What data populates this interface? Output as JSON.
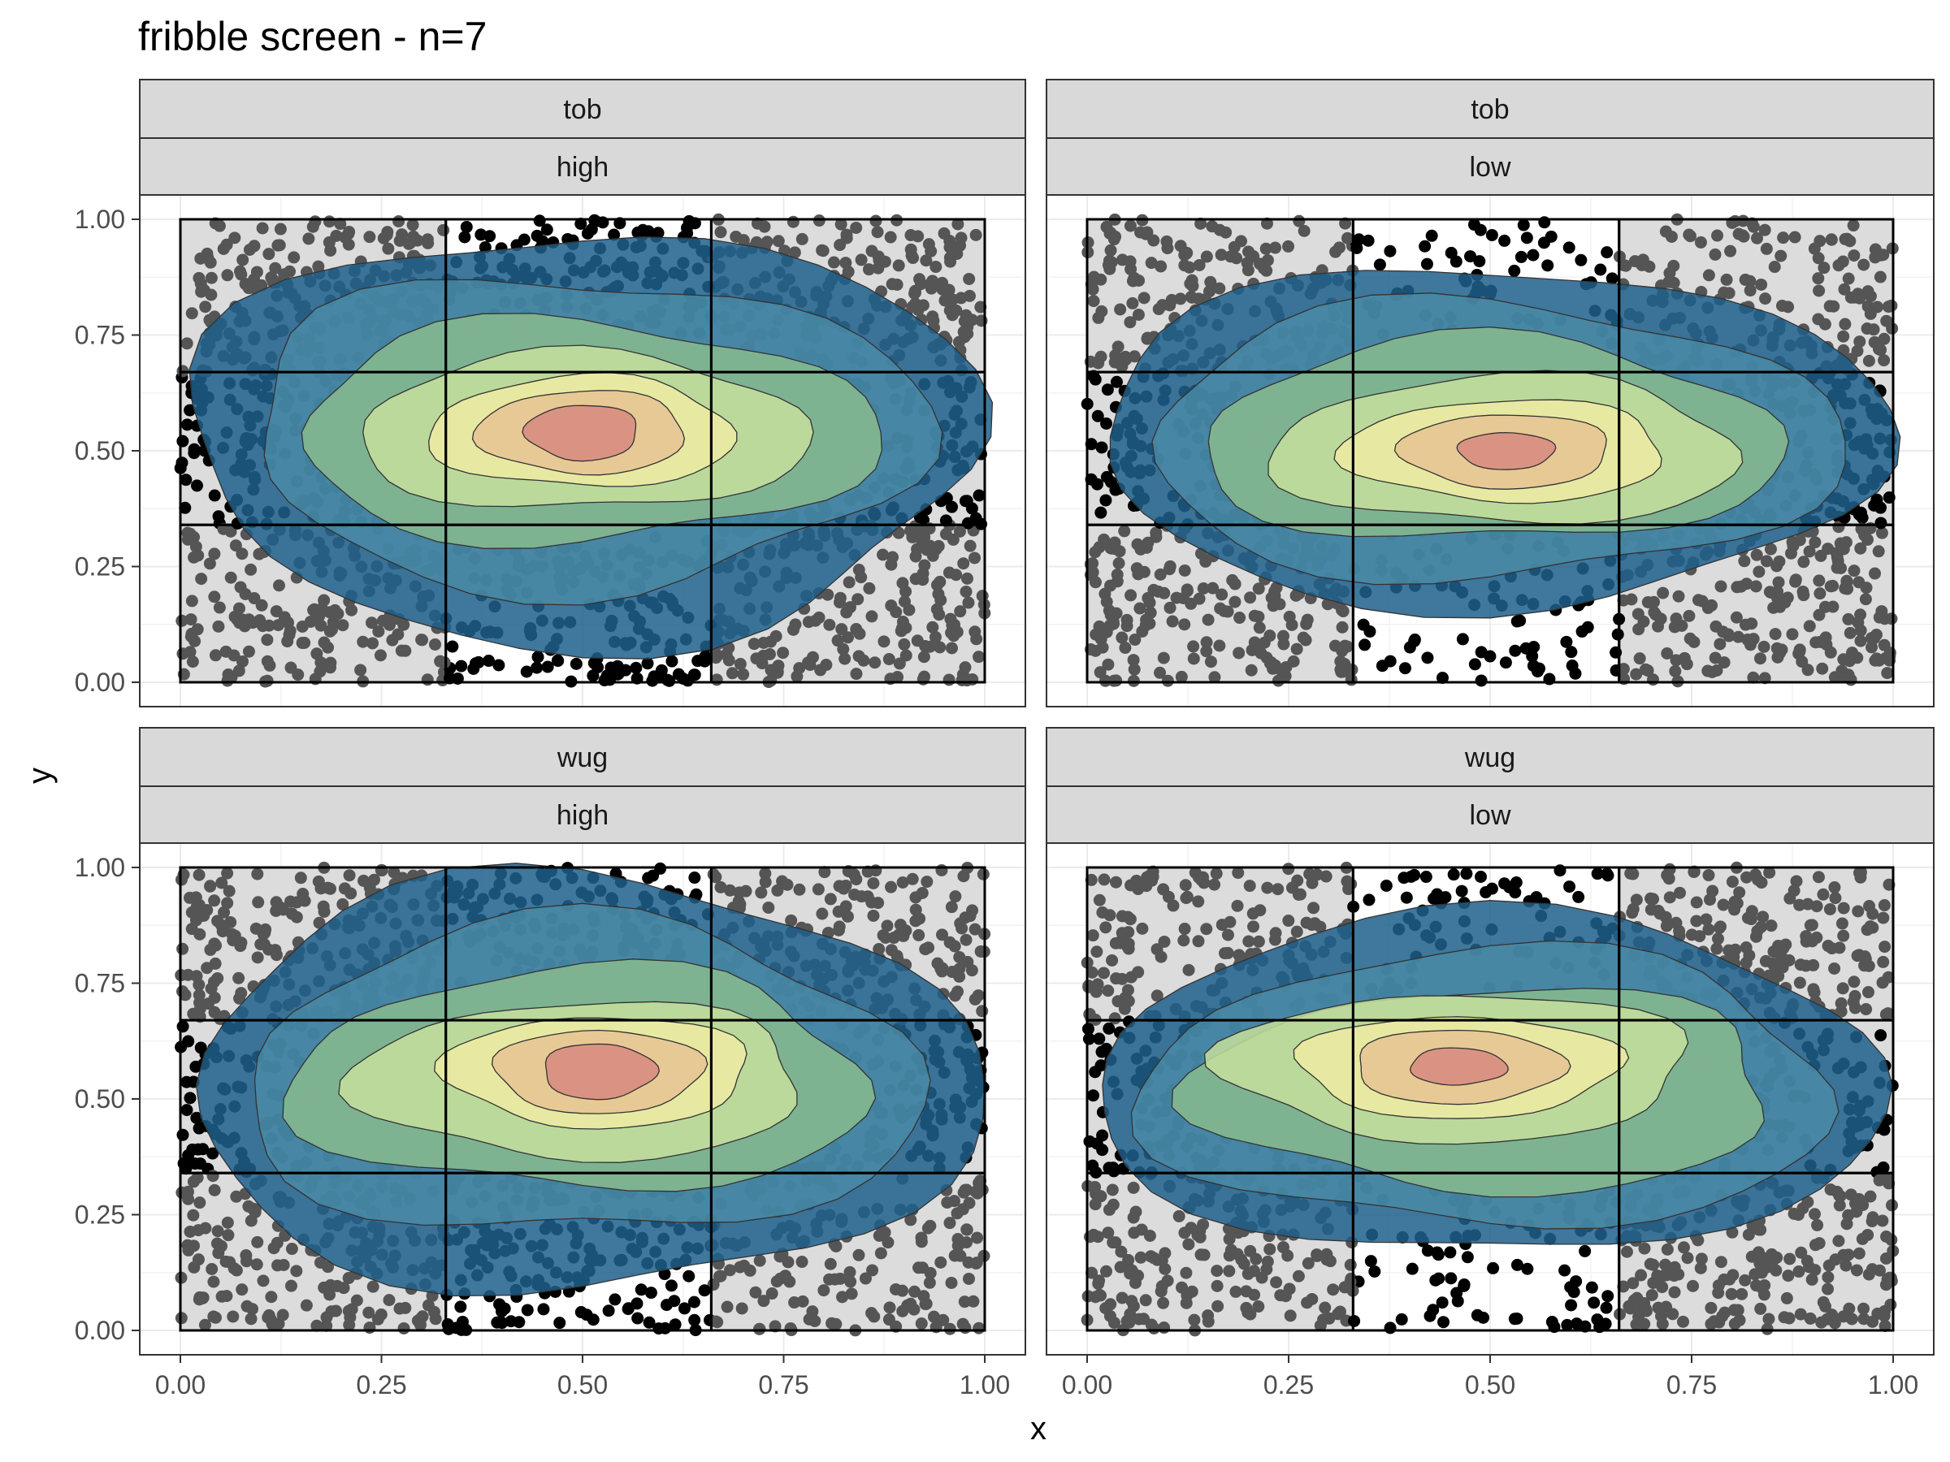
{
  "chart_data": {
    "type": "scatter",
    "title": "fribble screen - n=7",
    "xlabel": "x",
    "ylabel": "y",
    "xlim": [
      0,
      1
    ],
    "ylim": [
      0,
      1
    ],
    "x_ticks": [
      "0.00",
      "0.25",
      "0.50",
      "0.75",
      "1.00"
    ],
    "y_ticks": [
      "0.00",
      "0.25",
      "0.50",
      "0.75",
      "1.00"
    ],
    "x_tick_values": [
      0,
      0.25,
      0.5,
      0.75,
      1
    ],
    "y_tick_values": [
      0,
      0.25,
      0.5,
      0.75,
      1
    ],
    "grid": true,
    "theme": "bw",
    "layers": [
      "points",
      "density contours (filled)",
      "3x3 region grid"
    ],
    "region_breaks_x": [
      0,
      0.33,
      0.66,
      1
    ],
    "region_breaks_y": [
      0,
      0.34,
      0.67,
      1
    ],
    "point_colors": {
      "shaded_regions": "#555555",
      "center_band": "#000000"
    },
    "density_palette": [
      "#1f5f8b",
      "#4a8aa6",
      "#88bb8e",
      "#c6df9c",
      "#eeeba3",
      "#e6c394",
      "#d78a80"
    ],
    "panels": [
      {
        "strip_top": "tob",
        "strip_bottom": "high",
        "peak": [
          0.5,
          0.54
        ],
        "spread": "wide, centered"
      },
      {
        "strip_top": "tob",
        "strip_bottom": "low",
        "peak": [
          0.52,
          0.5
        ],
        "spread": "broad"
      },
      {
        "strip_top": "wug",
        "strip_bottom": "high",
        "peak": [
          0.52,
          0.56
        ],
        "spread": "wide, centered"
      },
      {
        "strip_top": "wug",
        "strip_bottom": "low",
        "peak": [
          0.46,
          0.57
        ],
        "spread": "broad"
      }
    ]
  }
}
